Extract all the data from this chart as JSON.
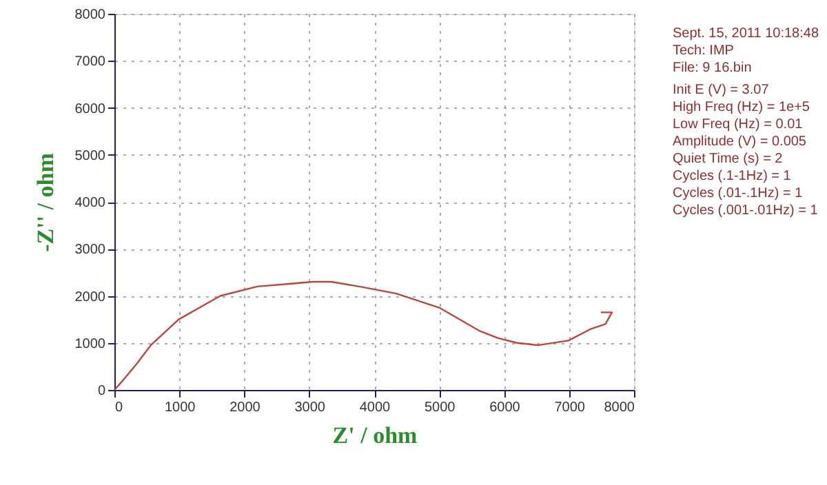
{
  "chart_data": {
    "type": "line",
    "xlabel": "Z' / ohm",
    "ylabel": "-Z'' / ohm",
    "x": [
      0,
      130,
      340,
      560,
      990,
      1630,
      2200,
      2630,
      3060,
      3340,
      3770,
      4340,
      5000,
      5630,
      5910,
      6200,
      6520,
      6990,
      7340,
      7560,
      7660,
      7490
    ],
    "series": [
      {
        "color": "#b5473f",
        "values": [
          0,
          200,
          550,
          950,
          1500,
          2000,
          2200,
          2250,
          2300,
          2300,
          2200,
          2050,
          1750,
          1250,
          1100,
          1000,
          950,
          1050,
          1300,
          1400,
          1650,
          1650
        ]
      }
    ],
    "xlim": [
      0,
      8000
    ],
    "ylim": [
      0,
      8000
    ],
    "xticks": [
      0,
      1000,
      2000,
      3000,
      4000,
      5000,
      6000,
      7000,
      8000
    ],
    "yticks": [
      0,
      1000,
      2000,
      3000,
      4000,
      5000,
      6000,
      7000,
      8000
    ],
    "grid": true,
    "marker": "none",
    "line_style": "solid",
    "annotations": [
      "Sept. 15, 2011   10:18:48",
      "Tech: IMP",
      "File: 9 16.bin",
      "Init E (V) = 3.07",
      "High Freq (Hz) = 1e+5",
      "Low Freq (Hz) = 0.01",
      "Amplitude (V) = 0.005",
      "Quiet Time (s) = 2",
      "Cycles (.1-1Hz) = 1",
      "Cycles (.01-.1Hz) = 1",
      "Cycles (.001-.01Hz) = 1"
    ]
  }
}
